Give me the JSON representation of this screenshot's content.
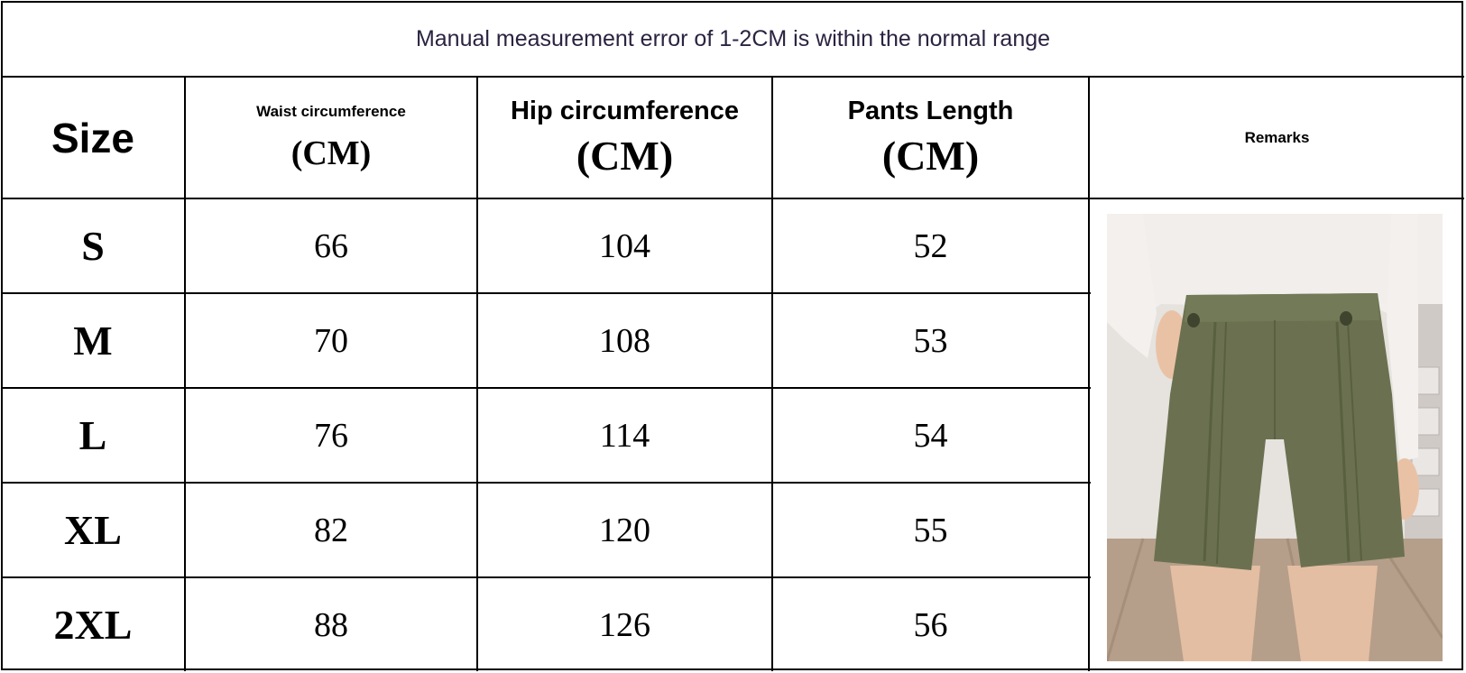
{
  "title": "Manual measurement error of 1-2CM is within the normal range",
  "headers": {
    "size": "Size",
    "waist": {
      "label": "Waist circumference",
      "unit": "(CM)"
    },
    "hip": {
      "label": "Hip circumference",
      "unit": "(CM)"
    },
    "length": {
      "label": "Pants Length",
      "unit": "(CM)"
    },
    "remarks": "Remarks"
  },
  "rows": [
    {
      "size": "S",
      "waist": "66",
      "hip": "104",
      "length": "52"
    },
    {
      "size": "M",
      "waist": "70",
      "hip": "108",
      "length": "53"
    },
    {
      "size": "L",
      "waist": "76",
      "hip": "114",
      "length": "54"
    },
    {
      "size": "XL",
      "waist": "82",
      "hip": "120",
      "length": "55"
    },
    {
      "size": "2XL",
      "waist": "88",
      "hip": "126",
      "length": "56"
    }
  ],
  "photo": {
    "icon": "olive-shorts-photo",
    "color": "#6b7150"
  }
}
